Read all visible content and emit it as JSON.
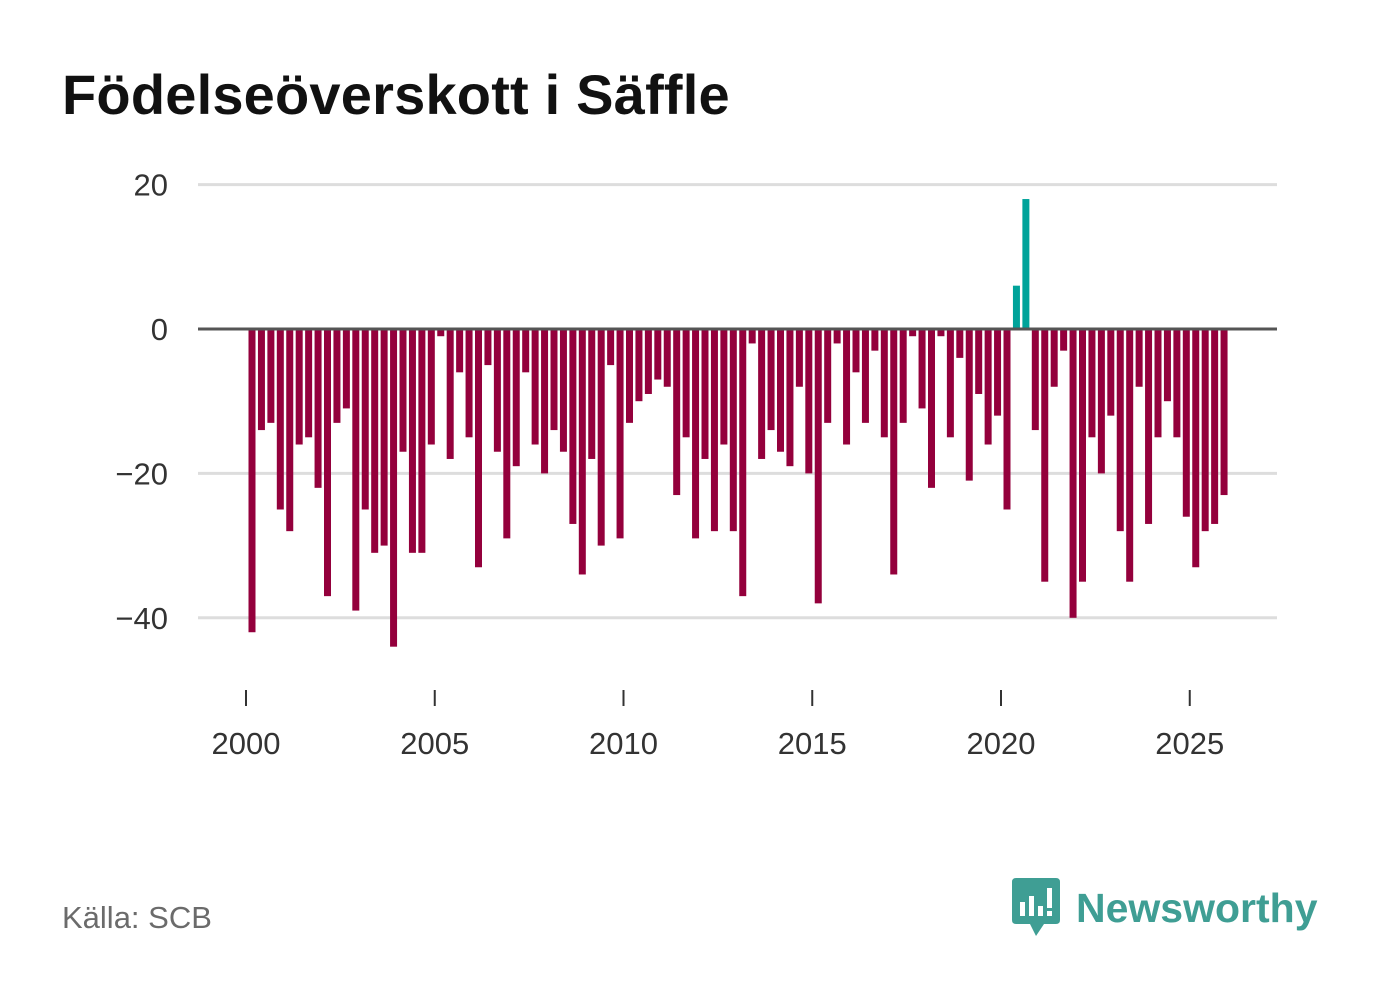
{
  "chart_data": {
    "type": "bar",
    "title": "Födelseöverskott i Säffle",
    "xlabel": "",
    "ylabel": "",
    "ylim": [
      -50,
      21
    ],
    "yticks": [
      20,
      0,
      -20,
      -40
    ],
    "ytick_labels": [
      "20",
      "0",
      "−20",
      "−40"
    ],
    "xticks": [
      2000,
      2005,
      2010,
      2015,
      2020,
      2025
    ],
    "xtick_labels": [
      "2000",
      "2005",
      "2010",
      "2015",
      "2020",
      "2025"
    ],
    "x_start": 2000.0,
    "x_step": 0.25,
    "values": [
      -42,
      -14,
      -13,
      -25,
      -28,
      -16,
      -15,
      -22,
      -37,
      -13,
      -11,
      -39,
      -25,
      -31,
      -30,
      -44,
      -17,
      -31,
      -31,
      -16,
      -1,
      -18,
      -6,
      -15,
      -33,
      -5,
      -17,
      -29,
      -19,
      -6,
      -16,
      -20,
      -14,
      -17,
      -27,
      -34,
      -18,
      -30,
      -5,
      -29,
      -13,
      -10,
      -9,
      -7,
      -8,
      -23,
      -15,
      -29,
      -18,
      -28,
      -16,
      -28,
      -37,
      -2,
      -18,
      -14,
      -17,
      -19,
      -8,
      -20,
      -38,
      -13,
      -2,
      -16,
      -6,
      -13,
      -3,
      -15,
      -34,
      -13,
      -1,
      -11,
      -22,
      -1,
      -15,
      -4,
      -21,
      -9,
      -16,
      -12,
      -25,
      6,
      18,
      -14,
      -35,
      -8,
      -3,
      -40,
      -35,
      -15,
      -20,
      -12,
      -28,
      -35,
      -8,
      -27,
      -15,
      -10,
      -15,
      -26,
      -33,
      -28,
      -27,
      -23
    ],
    "colors": {
      "negative": "#94003c",
      "positive": "#00a39a"
    }
  },
  "footer": {
    "source": "Källa: SCB",
    "brand": "Newsworthy"
  },
  "icons": {
    "logo": "newsworthy-logo-icon"
  },
  "colors": {
    "brand": "#3f9e94",
    "grid": "#dddddd",
    "zero_line": "#555555"
  }
}
